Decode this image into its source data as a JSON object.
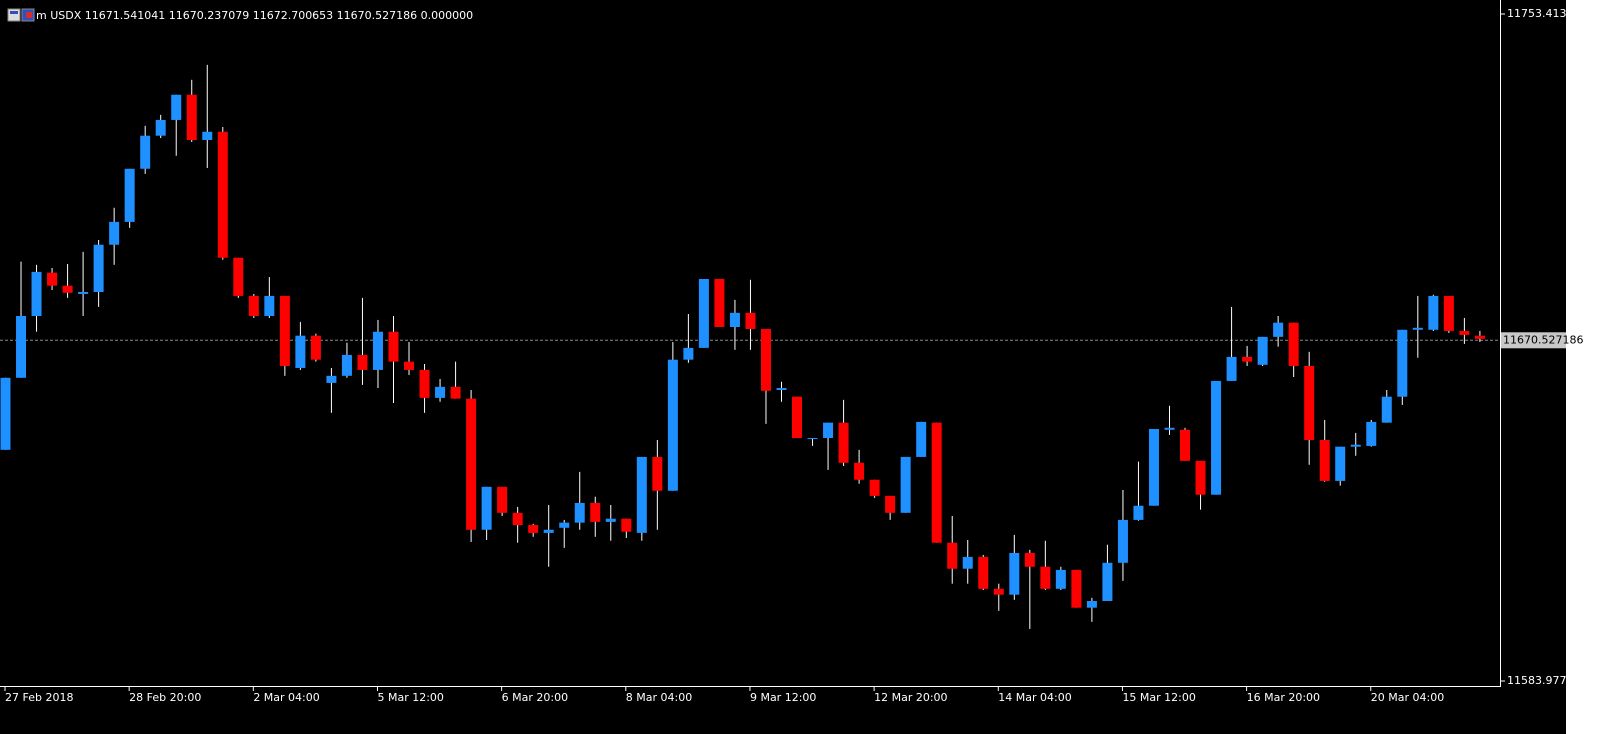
{
  "chart_data": {
    "type": "candlestick",
    "title": "m USDX 11671.541041 11670.237079 11672.700653 11670.527186 0.000000",
    "categories": [
      "27 Feb 2018",
      null,
      null,
      null,
      null,
      null,
      null,
      null,
      "28 Feb 20:00",
      null,
      null,
      null,
      null,
      null,
      null,
      null,
      "2 Mar 04:00",
      null,
      null,
      null,
      null,
      null,
      null,
      null,
      "5 Mar 12:00",
      null,
      null,
      null,
      null,
      null,
      null,
      null,
      "6 Mar 20:00",
      null,
      null,
      null,
      null,
      null,
      null,
      null,
      "8 Mar 04:00",
      null,
      null,
      null,
      null,
      null,
      null,
      null,
      "9 Mar 12:00",
      null,
      null,
      null,
      null,
      null,
      null,
      null,
      "12 Mar 20:00",
      null,
      null,
      null,
      null,
      null,
      null,
      null,
      "14 Mar 04:00",
      null,
      null,
      null,
      null,
      null,
      null,
      null,
      "15 Mar 12:00",
      null,
      null,
      null,
      null,
      null,
      null,
      null,
      "16 Mar 20:00",
      null,
      null,
      null,
      null,
      null,
      null,
      null,
      "20 Mar 04:00",
      null,
      null,
      null,
      null,
      null,
      null,
      null
    ],
    "open": [
      11642.7,
      11661.0,
      11676.7,
      11687.7,
      11684.4,
      11682.3,
      11682.8,
      11694.8,
      11700.6,
      11714.1,
      11722.5,
      11726.5,
      11732.9,
      11721.4,
      11723.5,
      11691.5,
      11681.8,
      11676.7,
      11681.8,
      11663.5,
      11671.7,
      11659.7,
      11661.5,
      11666.8,
      11663.0,
      11672.7,
      11665.1,
      11663.0,
      11655.9,
      11658.7,
      11655.7,
      11622.4,
      11633.3,
      11626.7,
      11623.6,
      11621.6,
      11622.9,
      11624.2,
      11629.2,
      11624.4,
      11625.2,
      11621.6,
      11640.9,
      11632.3,
      11665.6,
      11668.6,
      11686.1,
      11673.9,
      11677.5,
      11673.4,
      11657.9,
      11656.2,
      11645.7,
      11645.7,
      11649.6,
      11639.4,
      11635.1,
      11631.0,
      11626.7,
      11640.9,
      11649.6,
      11619.1,
      11612.5,
      11615.5,
      11607.4,
      11605.9,
      11616.5,
      11613.0,
      11607.4,
      11612.2,
      11602.6,
      11604.3,
      11614.0,
      11624.9,
      11628.5,
      11647.8,
      11647.8,
      11639.9,
      11631.3,
      11660.2,
      11666.3,
      11664.3,
      11671.4,
      11675.0,
      11664.0,
      11645.2,
      11634.8,
      11643.5,
      11643.7,
      11649.6,
      11656.2,
      11673.2,
      11673.2,
      11681.8,
      11672.9,
      11671.7
    ],
    "high": [
      11661.0,
      11690.5,
      11689.7,
      11688.9,
      11689.9,
      11693.0,
      11696.0,
      11704.2,
      11714.1,
      11725.0,
      11727.8,
      11732.9,
      11736.7,
      11740.5,
      11724.7,
      11691.5,
      11682.3,
      11686.6,
      11681.8,
      11675.2,
      11672.2,
      11663.5,
      11669.9,
      11681.3,
      11675.7,
      11676.7,
      11670.1,
      11664.5,
      11660.7,
      11665.1,
      11657.9,
      11633.3,
      11633.3,
      11628.2,
      11623.9,
      11628.7,
      11624.9,
      11637.1,
      11630.8,
      11628.7,
      11625.2,
      11640.9,
      11645.2,
      11670.1,
      11677.2,
      11686.1,
      11686.1,
      11680.8,
      11685.9,
      11673.4,
      11660.0,
      11656.2,
      11645.7,
      11649.6,
      11655.4,
      11642.7,
      11635.1,
      11631.0,
      11640.9,
      11649.8,
      11649.6,
      11625.9,
      11619.8,
      11616.0,
      11608.7,
      11621.1,
      11617.3,
      11619.6,
      11613.0,
      11612.2,
      11605.1,
      11618.6,
      11632.5,
      11639.7,
      11648.0,
      11653.9,
      11648.3,
      11639.9,
      11660.2,
      11679.0,
      11669.1,
      11671.4,
      11676.7,
      11675.0,
      11667.6,
      11650.3,
      11643.5,
      11647.0,
      11650.3,
      11657.9,
      11673.2,
      11681.8,
      11682.1,
      11681.8,
      11676.2,
      11672.9
    ],
    "low": [
      11642.7,
      11661.0,
      11672.7,
      11683.3,
      11681.3,
      11676.7,
      11679.0,
      11689.7,
      11699.1,
      11712.8,
      11721.9,
      11717.4,
      11720.9,
      11714.3,
      11691.0,
      11681.3,
      11676.2,
      11676.2,
      11661.5,
      11663.0,
      11665.1,
      11652.1,
      11661.0,
      11659.2,
      11658.4,
      11654.6,
      11661.7,
      11652.1,
      11654.9,
      11655.7,
      11619.3,
      11619.8,
      11625.9,
      11619.1,
      11620.6,
      11613.0,
      11617.8,
      11622.4,
      11620.6,
      11619.6,
      11620.3,
      11619.6,
      11622.4,
      11632.3,
      11664.8,
      11668.6,
      11673.9,
      11668.1,
      11668.1,
      11649.3,
      11654.9,
      11645.7,
      11643.7,
      11637.6,
      11638.6,
      11634.1,
      11630.5,
      11624.9,
      11626.7,
      11640.9,
      11619.1,
      11608.7,
      11608.7,
      11607.1,
      11601.8,
      11604.6,
      11597.2,
      11607.1,
      11607.1,
      11602.6,
      11599.0,
      11604.3,
      11609.4,
      11624.7,
      11628.5,
      11646.5,
      11639.9,
      11627.5,
      11631.3,
      11660.2,
      11664.0,
      11664.0,
      11668.9,
      11661.2,
      11638.9,
      11634.6,
      11633.6,
      11641.2,
      11643.5,
      11649.6,
      11654.1,
      11666.1,
      11672.9,
      11672.4,
      11669.6,
      11670.1
    ],
    "close": [
      11661.0,
      11676.7,
      11687.9,
      11684.4,
      11682.6,
      11682.8,
      11694.8,
      11700.6,
      11714.1,
      11722.5,
      11726.5,
      11732.9,
      11721.4,
      11723.5,
      11691.5,
      11681.8,
      11676.7,
      11681.8,
      11664.0,
      11671.7,
      11665.6,
      11661.5,
      11666.8,
      11663.0,
      11672.7,
      11665.1,
      11663.0,
      11655.9,
      11658.7,
      11655.7,
      11622.4,
      11633.3,
      11626.7,
      11623.6,
      11621.6,
      11622.4,
      11624.2,
      11629.2,
      11624.4,
      11625.2,
      11621.9,
      11640.9,
      11632.3,
      11665.6,
      11668.6,
      11686.1,
      11673.9,
      11677.5,
      11673.4,
      11657.7,
      11658.4,
      11645.7,
      11645.7,
      11649.6,
      11639.4,
      11635.1,
      11631.0,
      11626.7,
      11640.9,
      11649.8,
      11619.1,
      11612.5,
      11615.5,
      11607.4,
      11605.9,
      11616.5,
      11613.0,
      11607.4,
      11612.2,
      11602.6,
      11604.3,
      11614.0,
      11624.9,
      11628.5,
      11648.0,
      11648.3,
      11639.9,
      11631.3,
      11660.2,
      11666.3,
      11665.1,
      11671.4,
      11675.0,
      11664.0,
      11645.2,
      11634.8,
      11643.5,
      11644.0,
      11649.8,
      11656.2,
      11673.2,
      11673.7,
      11681.8,
      11672.9,
      11671.9,
      11670.9
    ],
    "up_color": "#1e90ff",
    "down_color": "#ff0000",
    "wick_color": "#ffffff",
    "ylim": [
      11583.9778,
      11753.4139
    ],
    "yticks": [
      11753.4139,
      11583.9778
    ],
    "price_line": 11670.527186
  }
}
